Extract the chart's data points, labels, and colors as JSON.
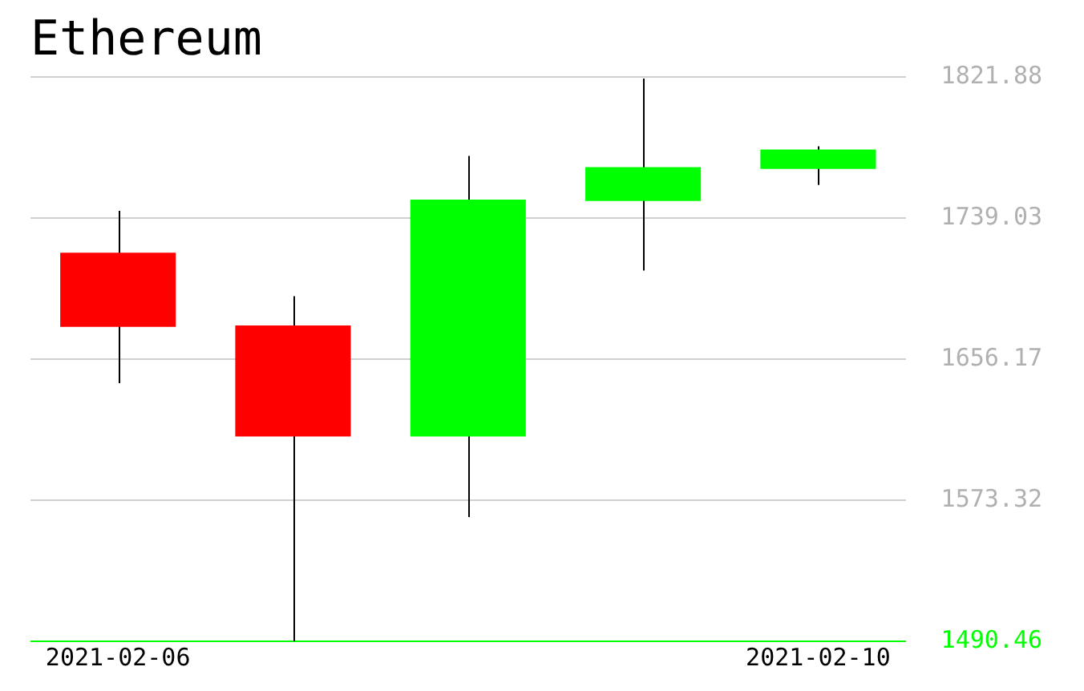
{
  "chart_data": {
    "type": "candlestick",
    "title": "Ethereum",
    "categories": [
      "2021-02-06",
      null,
      null,
      null,
      "2021-02-10"
    ],
    "ohlc": [
      [
        1718.7,
        1743.3,
        1642.0,
        1675.1
      ],
      [
        1676.0,
        1693.1,
        1490.46,
        1610.7
      ],
      [
        1610.7,
        1775.5,
        1563.4,
        1749.9
      ],
      [
        1749.0,
        1820.9,
        1708.2,
        1768.9
      ],
      [
        1767.9,
        1781.2,
        1758.4,
        1779.3
      ]
    ],
    "colors": [
      "#ff0000",
      "#ff0000",
      "#00ff00",
      "#00ff00",
      "#00ff00"
    ],
    "ylim": [
      1490.46,
      1821.88
    ],
    "yticks": [
      1490.46,
      1573.32,
      1656.17,
      1739.03,
      1821.88
    ],
    "grid": "y",
    "legend": false
  }
}
